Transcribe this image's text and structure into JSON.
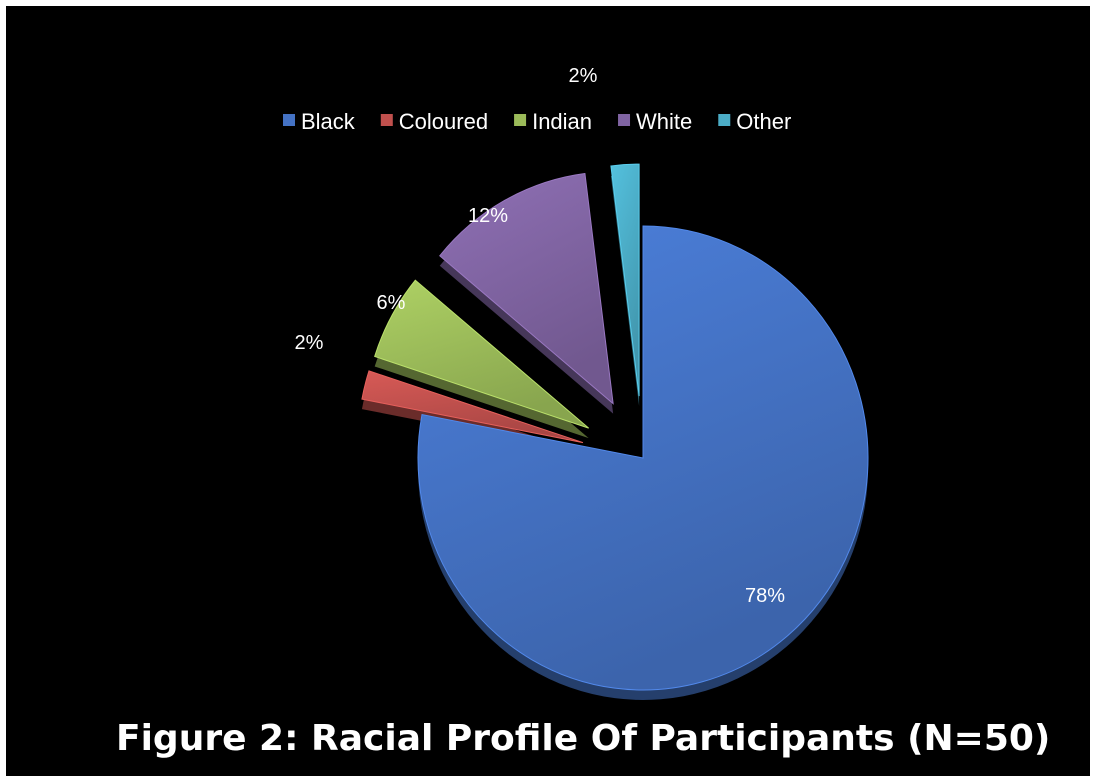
{
  "chart_data": {
    "type": "pie",
    "title": "",
    "series": [
      {
        "name": "Black",
        "value": 78,
        "label": "78%",
        "color": "#4472C4"
      },
      {
        "name": "Coloured",
        "value": 2,
        "label": "2%",
        "color": "#C0504D"
      },
      {
        "name": "Indian",
        "value": 6,
        "label": "6%",
        "color": "#9BBB59"
      },
      {
        "name": "White",
        "value": 12,
        "label": "12%",
        "color": "#8064A2"
      },
      {
        "name": "Other",
        "value": 2,
        "label": "2%",
        "color": "#4BACC6"
      }
    ],
    "legend_position": "top",
    "exploded_slices": [
      "Coloured",
      "Indian",
      "White",
      "Other"
    ],
    "style": "3d"
  },
  "caption": "Figure 2: Racial Profile Of Participants (N=50)",
  "background_color": "#000000"
}
